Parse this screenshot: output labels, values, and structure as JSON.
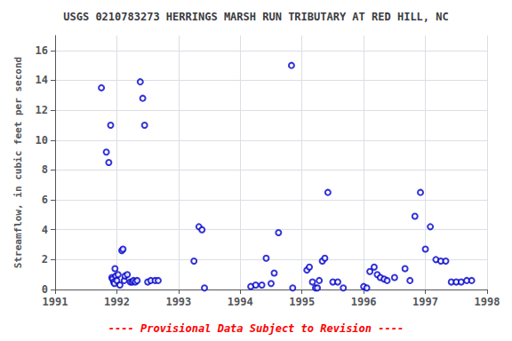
{
  "chart_data": {
    "type": "scatter",
    "title": "USGS 0210783273 HERRINGS MARSH RUN TRIBUTARY AT RED HILL, NC",
    "ylabel": "Streamflow, in cubic feet per second",
    "annotation": "---- Provisional Data Subject to Revision ----",
    "xlim": [
      1991,
      1998
    ],
    "ylim": [
      0,
      17
    ],
    "xticks": [
      1991,
      1992,
      1993,
      1994,
      1995,
      1996,
      1997,
      1998
    ],
    "yticks": [
      0,
      2,
      4,
      6,
      8,
      10,
      12,
      14,
      16
    ],
    "grid": true,
    "color": "#0000cc",
    "marker": "open circle",
    "x": [
      1991.75,
      1991.83,
      1991.87,
      1991.9,
      1991.92,
      1991.93,
      1991.95,
      1991.96,
      1991.97,
      1991.98,
      1992.0,
      1992.02,
      1992.05,
      1992.08,
      1992.1,
      1992.12,
      1992.13,
      1992.17,
      1992.22,
      1992.25,
      1992.27,
      1992.3,
      1992.33,
      1992.38,
      1992.42,
      1992.45,
      1992.5,
      1992.55,
      1992.62,
      1992.67,
      1993.25,
      1993.33,
      1993.38,
      1993.42,
      1994.17,
      1994.25,
      1994.35,
      1994.42,
      1994.5,
      1994.55,
      1994.62,
      1994.83,
      1994.85,
      1995.08,
      1995.12,
      1995.17,
      1995.22,
      1995.25,
      1995.28,
      1995.33,
      1995.37,
      1995.42,
      1995.5,
      1995.58,
      1995.67,
      1996.0,
      1996.05,
      1996.1,
      1996.17,
      1996.22,
      1996.27,
      1996.33,
      1996.38,
      1996.5,
      1996.67,
      1996.75,
      1996.83,
      1996.92,
      1997.0,
      1997.08,
      1997.17,
      1997.25,
      1997.33,
      1997.42,
      1997.5,
      1997.58,
      1997.67,
      1997.75
    ],
    "values": [
      13.5,
      9.2,
      8.5,
      11.0,
      0.8,
      0.7,
      0.5,
      0.4,
      1.4,
      0.9,
      0.6,
      1.0,
      0.3,
      2.6,
      2.7,
      0.6,
      0.9,
      1.0,
      0.5,
      0.5,
      0.6,
      0.5,
      0.6,
      13.9,
      12.8,
      11.0,
      0.5,
      0.6,
      0.6,
      0.6,
      1.9,
      4.2,
      4.0,
      0.1,
      0.2,
      0.3,
      0.3,
      2.1,
      0.4,
      1.1,
      3.8,
      15.0,
      0.1,
      1.3,
      1.5,
      0.5,
      0.1,
      0.1,
      0.6,
      1.9,
      2.1,
      6.5,
      0.5,
      0.5,
      0.1,
      0.2,
      0.1,
      1.2,
      1.5,
      1.0,
      0.8,
      0.7,
      0.6,
      0.8,
      1.4,
      0.6,
      4.9,
      6.5,
      2.7,
      4.2,
      2.0,
      1.9,
      1.9,
      0.5,
      0.5,
      0.5,
      0.6,
      0.6
    ]
  }
}
